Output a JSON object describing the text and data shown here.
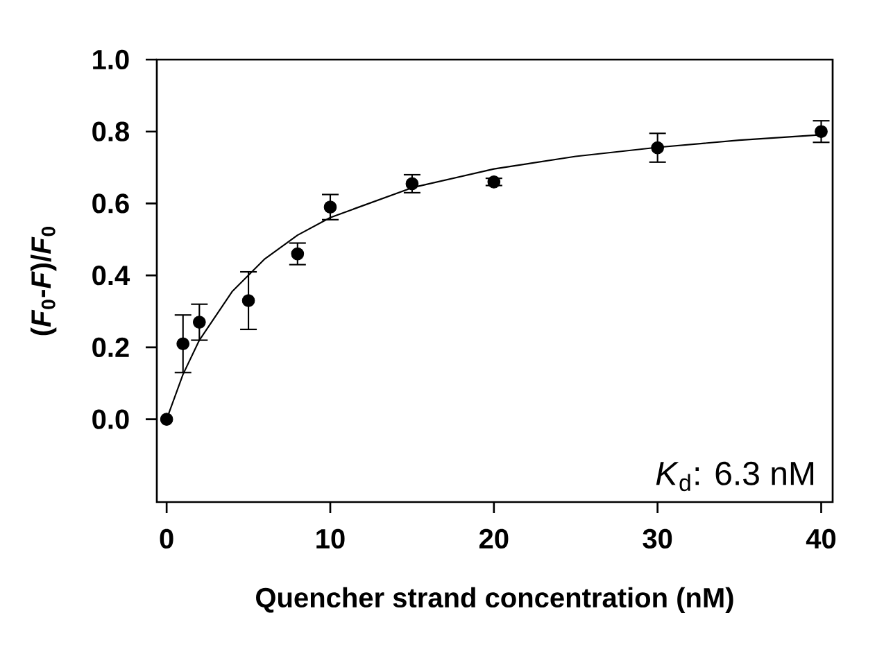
{
  "chart_data": {
    "type": "scatter",
    "xlabel": "Quencher strand concentration (nM)",
    "ylabel": "(*F*$_{0}$-*F*)/*F*$_{0}$",
    "annotations": [
      "*K*$_{d}$: 6.3 nM"
    ],
    "xlim": [
      -0.6,
      40.7
    ],
    "ylim": [
      -0.23,
      1.0
    ],
    "xticks": [
      0,
      10,
      20,
      30,
      40
    ],
    "yticks": [
      {
        "value": 0,
        "label": "0.0"
      },
      {
        "value": 0.2,
        "label": "0.2"
      },
      {
        "value": 0.4,
        "label": "0.4"
      },
      {
        "value": 0.6,
        "label": "0.6"
      },
      {
        "value": 0.8,
        "label": "0.8"
      },
      {
        "value": 1.0,
        "label": "1.0"
      }
    ],
    "grid": false,
    "series": [
      {
        "color": "#000000",
        "marker": "circle",
        "x": [
          0,
          1,
          2,
          5,
          8,
          10,
          15,
          20,
          30,
          40
        ],
        "values": [
          0,
          0.21,
          0.27,
          0.33,
          0.46,
          0.59,
          0.655,
          0.66,
          0.755,
          0.8
        ],
        "errors": [
          null,
          0.08,
          0.05,
          0.08,
          0.03,
          0.035,
          0.025,
          0.01,
          0.04,
          0.03
        ]
      },
      {
        "type": "line",
        "color": "#000000",
        "marker": "none",
        "line_style": "solid",
        "x": [
          0,
          1,
          2,
          4,
          6,
          8,
          10,
          15,
          20,
          25,
          30,
          35,
          40
        ],
        "values": [
          0,
          0.125,
          0.22,
          0.355,
          0.446,
          0.512,
          0.561,
          0.644,
          0.696,
          0.731,
          0.756,
          0.776,
          0.791
        ]
      }
    ]
  }
}
